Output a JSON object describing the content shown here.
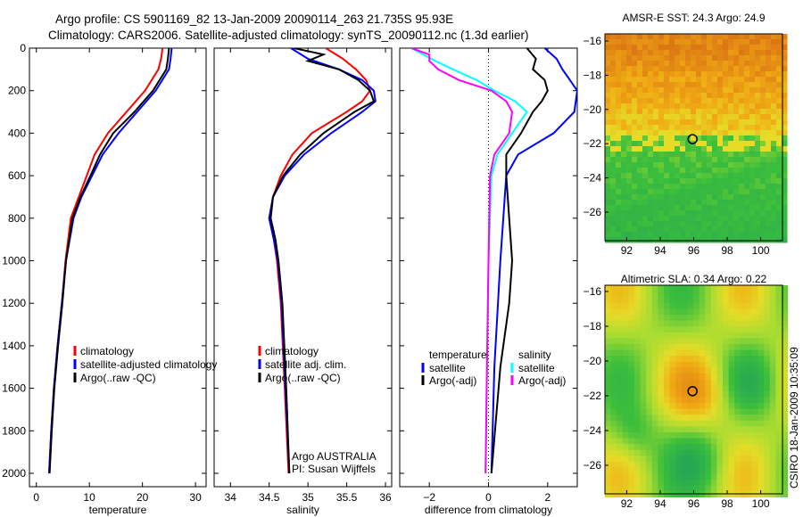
{
  "title_line1": "Argo profile: CS 5901169_82 13-Jan-2009 20090114_263 21.735S 95.93E",
  "title_line2": "Climatology: CARS2006. Satellite-adjusted climatology: synTS_20090112.nc (1.3d earlier)",
  "side_stamp": "CSIRO 18-Jan-2009 10:35:09",
  "colors": {
    "red": "#ff0000",
    "blue": "#0000ff",
    "black": "#000000",
    "cyan": "#00ffff",
    "magenta": "#ff00ff"
  },
  "chart_data": [
    {
      "type": "line",
      "id": "temperature",
      "xlabel": "temperature",
      "ylabel": "",
      "xlim": [
        -1.3,
        32
      ],
      "ylim": [
        2050,
        0
      ],
      "xticks": [
        0,
        10,
        20,
        30
      ],
      "yticks": [
        0,
        200,
        400,
        600,
        800,
        1000,
        1200,
        1400,
        1600,
        1800,
        2000
      ],
      "legend": {
        "placement": "bottom-right",
        "entries": [
          "climatology",
          "satellite-adjusted climatology",
          "Argo(..raw -QC)"
        ]
      },
      "series": [
        {
          "name": "climatology",
          "color": "red",
          "depth": [
            0,
            50,
            100,
            200,
            300,
            400,
            500,
            600,
            700,
            800,
            1000,
            1200,
            1400,
            1600,
            1800,
            2000
          ],
          "values": [
            23.8,
            23.5,
            23,
            20.5,
            17,
            13.5,
            11,
            9.5,
            8,
            6.5,
            5.5,
            4.8,
            4,
            3.3,
            2.8,
            2.4
          ]
        },
        {
          "name": "satellite-adjusted climatology",
          "color": "blue",
          "depth": [
            0,
            50,
            100,
            200,
            300,
            400,
            500,
            600,
            700,
            800,
            1000,
            1200,
            1400,
            1600,
            1800,
            2000
          ],
          "values": [
            25.5,
            25.3,
            25,
            22.5,
            19,
            15.5,
            12.5,
            10.5,
            8.5,
            7,
            5.6,
            4.8,
            4,
            3.3,
            2.8,
            2.4
          ]
        },
        {
          "name": "Argo(..raw -QC)",
          "color": "black",
          "depth": [
            0,
            50,
            100,
            200,
            300,
            400,
            500,
            600,
            700,
            800,
            1000,
            1200,
            1400,
            1600,
            1800,
            2000
          ],
          "values": [
            25,
            24.8,
            24.5,
            22,
            18.5,
            14.5,
            12,
            10.2,
            8.3,
            6.8,
            5.6,
            4.9,
            4.1,
            3.4,
            2.9,
            2.5
          ]
        }
      ]
    },
    {
      "type": "line",
      "id": "salinity",
      "xlabel": "salinity",
      "xlim": [
        33.79,
        36.08
      ],
      "ylim": [
        2050,
        0
      ],
      "xticks": [
        34,
        34.5,
        35,
        35.5,
        36
      ],
      "legend": {
        "placement": "bottom-right",
        "entries": [
          "climatology",
          "satellite adj. clim.",
          "Argo(..raw -QC)"
        ]
      },
      "annotation": [
        "Argo AUSTRALIA",
        "PI: Susan Wijffels"
      ],
      "series": [
        {
          "name": "climatology",
          "color": "red",
          "depth": [
            0,
            50,
            100,
            150,
            200,
            250,
            300,
            400,
            500,
            600,
            700,
            800,
            900,
            1000,
            1200,
            1600,
            2000
          ],
          "values": [
            35.23,
            35.45,
            35.62,
            35.75,
            35.8,
            35.7,
            35.5,
            35.05,
            34.8,
            34.65,
            34.55,
            34.5,
            34.56,
            34.6,
            34.65,
            34.7,
            34.75
          ]
        },
        {
          "name": "satellite adj. clim.",
          "color": "blue",
          "depth": [
            0,
            50,
            100,
            150,
            200,
            250,
            300,
            400,
            500,
            600,
            700,
            800,
            900,
            1000,
            1200,
            1600,
            2000
          ],
          "values": [
            34.78,
            35.0,
            35.4,
            35.7,
            35.85,
            35.87,
            35.7,
            35.3,
            34.95,
            34.7,
            34.55,
            34.5,
            34.56,
            34.61,
            34.66,
            34.71,
            34.76
          ]
        },
        {
          "name": "Argo(..raw -QC)",
          "color": "black",
          "depth": [
            0,
            30,
            60,
            100,
            150,
            200,
            250,
            300,
            400,
            500,
            600,
            700,
            800,
            900,
            1000,
            1200,
            1600,
            2000
          ],
          "values": [
            34.82,
            35.2,
            35.0,
            35.4,
            35.65,
            35.8,
            35.85,
            35.6,
            35.2,
            34.9,
            34.68,
            34.55,
            34.52,
            34.58,
            34.62,
            34.67,
            34.72,
            34.76
          ]
        }
      ]
    },
    {
      "type": "line",
      "id": "difference",
      "xlabel": "difference from climatology",
      "xlim": [
        -3,
        3
      ],
      "ylim": [
        2050,
        0
      ],
      "xticks": [
        -2,
        0,
        2
      ],
      "legend": {
        "placement": "bottom",
        "temperature_header": "temperature",
        "salinity_header": "salinity",
        "entries": [
          "satellite",
          "Argo(-adj)",
          "satellite",
          "Argo(-adj)"
        ]
      },
      "series": [
        {
          "name": "temperature satellite",
          "color": "blue",
          "depth": [
            0,
            50,
            100,
            200,
            300,
            400,
            500,
            600,
            800,
            1000,
            1500,
            2000
          ],
          "values": [
            1.9,
            2.3,
            2.5,
            3.0,
            2.9,
            2.2,
            1.0,
            0.6,
            0.5,
            0.4,
            0.2,
            0.1
          ]
        },
        {
          "name": "temperature Argo(-adj)",
          "color": "black",
          "depth": [
            0,
            50,
            100,
            150,
            200,
            250,
            300,
            400,
            500,
            600,
            800,
            1000,
            1200,
            1500,
            2000
          ],
          "values": [
            1.3,
            1.6,
            1.5,
            1.9,
            2.0,
            1.8,
            1.5,
            1.1,
            0.6,
            0.6,
            0.7,
            0.8,
            0.7,
            0.4,
            0.1
          ]
        },
        {
          "name": "salinity satellite",
          "color": "cyan",
          "depth": [
            0,
            30,
            60,
            100,
            150,
            200,
            250,
            300,
            400,
            500,
            600,
            1000,
            1500,
            2000
          ],
          "values": [
            -2.6,
            -2.2,
            -1.8,
            -1.2,
            -0.4,
            0.2,
            0.9,
            1.3,
            0.8,
            0.3,
            0.1,
            0.0,
            -0.05,
            -0.1
          ]
        },
        {
          "name": "salinity Argo(-adj)",
          "color": "magenta",
          "depth": [
            0,
            30,
            60,
            100,
            150,
            200,
            250,
            300,
            400,
            500,
            600,
            1000,
            1500,
            2000
          ],
          "values": [
            -2.6,
            -2.0,
            -2.0,
            -1.7,
            -1.0,
            0.1,
            0.6,
            0.8,
            0.7,
            0.2,
            0.05,
            0.0,
            -0.05,
            -0.1
          ]
        }
      ]
    },
    {
      "type": "heatmap",
      "id": "sst_map",
      "title": "AMSR-E SST: 24.3 Argo: 24.9",
      "xlim": [
        90.7,
        101.3
      ],
      "ylim": [
        -27.8,
        -15.8
      ],
      "xticks": [
        92,
        94,
        96,
        98,
        100
      ],
      "yticks": [
        -16,
        -18,
        -20,
        -22,
        -24,
        -26
      ],
      "marker": {
        "lon": 95.93,
        "lat": -21.735
      }
    },
    {
      "type": "heatmap",
      "id": "sla_map",
      "title": "Altimetric SLA: 0.34 Argo: 0.22",
      "xlim": [
        90.7,
        101.3
      ],
      "ylim": [
        -27.7,
        -15.8
      ],
      "xticks": [
        92,
        94,
        96,
        98,
        100
      ],
      "yticks": [
        -16,
        -18,
        -20,
        -22,
        -24,
        -26
      ],
      "marker": {
        "lon": 95.93,
        "lat": -21.735
      }
    }
  ]
}
